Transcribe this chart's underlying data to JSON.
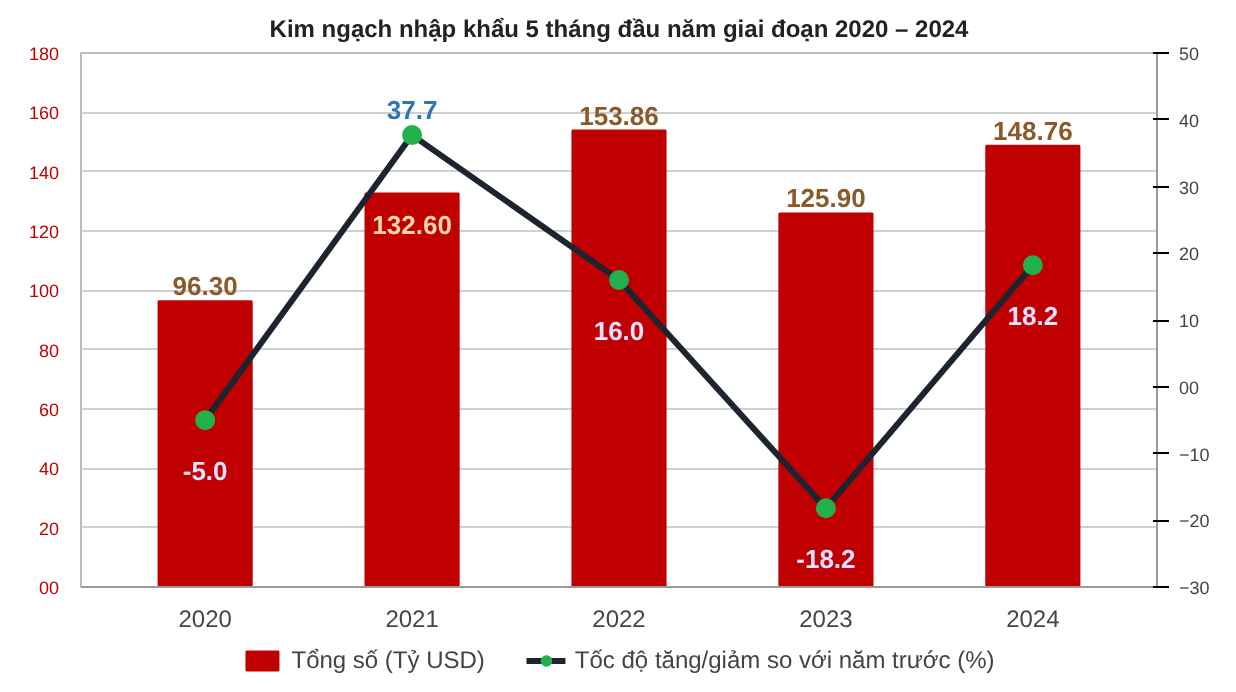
{
  "chart_data": {
    "type": "bar",
    "title": "Kim ngạch nhập khẩu 5 tháng đầu năm giai đoạn 2020 – 2024",
    "categories": [
      "2020",
      "2021",
      "2022",
      "2023",
      "2024"
    ],
    "series": [
      {
        "name": "Tổng số (Tỷ USD)",
        "color": "#c00000",
        "values": [
          96.3,
          132.6,
          153.86,
          125.9,
          148.76
        ],
        "value_labels": [
          "96.30",
          "132.60",
          "153.86",
          "125.90",
          "148.76"
        ]
      },
      {
        "name": "Tốc độ tăng/giảm so với năm trước (%)",
        "type": "line",
        "axis": "y2",
        "color": "#1c2430",
        "values": [
          -5.0,
          37.7,
          16.0,
          -18.2,
          18.2
        ],
        "value_labels": [
          "-5.0",
          "37.7",
          "16.0",
          "-18.2",
          "18.2"
        ]
      }
    ],
    "ylim": [
      0,
      180
    ],
    "yticks": [
      {
        "value": 0,
        "label": "00"
      },
      20,
      40,
      60,
      80,
      100,
      120,
      140,
      160,
      180
    ],
    "y2lim": [
      -30,
      50
    ],
    "y2ticks": [
      -30,
      -20,
      -10,
      {
        "value": 0,
        "label": "00"
      },
      10,
      20,
      30,
      40,
      50
    ],
    "grid": "y",
    "legend": "bottom",
    "marker": "circle",
    "line_style": "solid"
  }
}
